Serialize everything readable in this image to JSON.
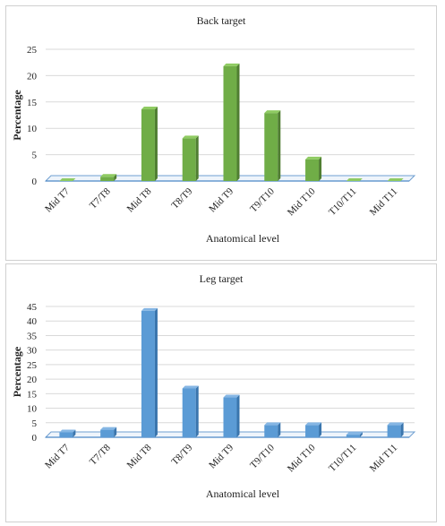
{
  "chart_data": [
    {
      "type": "bar",
      "title": "Back target",
      "xlabel": "Anatomical level",
      "ylabel": "Percentage",
      "categories": [
        "Mid T7",
        "T7/T8",
        "Mid T8",
        "T8/T9",
        "Mid T9",
        "T9/T10",
        "Mid T10",
        "T10/T11",
        "Mid T11"
      ],
      "values": [
        0,
        0.8,
        13.6,
        8.1,
        21.8,
        12.9,
        4.1,
        0,
        0
      ],
      "ylim": [
        0,
        25
      ],
      "yticks": [
        0,
        5,
        10,
        15,
        20,
        25
      ],
      "grid": true,
      "color": "#70ad47",
      "color_dark": "#507e32",
      "color_light": "#8fcb62"
    },
    {
      "type": "bar",
      "title": "Leg target",
      "xlabel": "Anatomical level",
      "ylabel": "Percentage",
      "categories": [
        "Mid T7",
        "T7/T8",
        "Mid T8",
        "T8/T9",
        "Mid T9",
        "T9/T10",
        "Mid T10",
        "T10/T11",
        "Mid T11"
      ],
      "values": [
        1.7,
        2.6,
        43.5,
        16.8,
        13.7,
        4.2,
        4.2,
        0.9,
        4.2
      ],
      "ylim": [
        0,
        45
      ],
      "yticks": [
        0,
        5,
        10,
        15,
        20,
        25,
        30,
        35,
        40,
        45
      ],
      "grid": true,
      "color": "#5b9bd5",
      "color_dark": "#3a75ad",
      "color_light": "#85b6e4"
    }
  ]
}
